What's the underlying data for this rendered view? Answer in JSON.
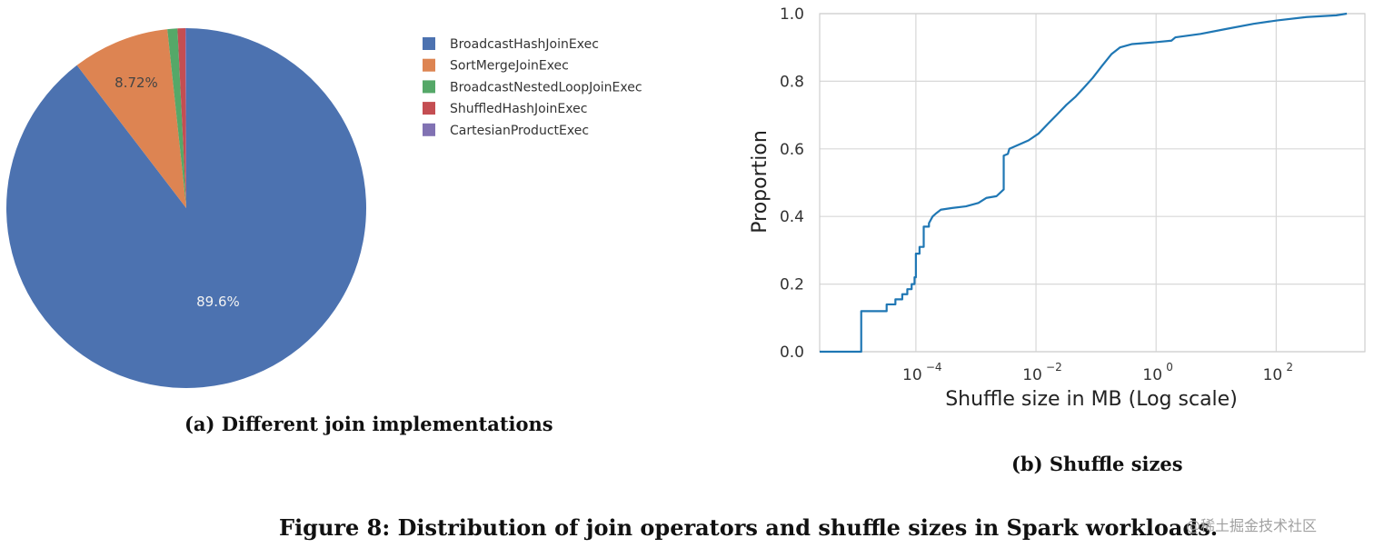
{
  "chart_data": [
    {
      "type": "pie",
      "caption": "(a) Different join implementations",
      "slices": [
        {
          "label": "BroadcastHashJoinExec",
          "value": 89.6,
          "color": "#4c72b0",
          "pct_label": "89.6%"
        },
        {
          "label": "SortMergeJoinExec",
          "value": 8.72,
          "color": "#dd8452",
          "pct_label": "8.72%"
        },
        {
          "label": "BroadcastNestedLoopJoinExec",
          "value": 0.9,
          "color": "#55a868",
          "pct_label": ""
        },
        {
          "label": "ShuffledHashJoinExec",
          "value": 0.7,
          "color": "#c44e52",
          "pct_label": ""
        },
        {
          "label": "CartesianProductExec",
          "value": 0.08,
          "color": "#8172b3",
          "pct_label": ""
        }
      ],
      "start_angle": "top, clockwise",
      "legend_position": "right"
    },
    {
      "type": "line",
      "caption": "(b) Shuffle sizes",
      "xlabel": "Shuffle size in MB (Log scale)",
      "ylabel": "Proportion",
      "xscale": "log",
      "xlim": [
        2.5e-06,
        3000
      ],
      "ylim": [
        0,
        1.0
      ],
      "xticks": [
        {
          "value": 0.0001,
          "base": "10",
          "exp": "−4"
        },
        {
          "value": 0.01,
          "base": "10",
          "exp": "−2"
        },
        {
          "value": 1,
          "base": "10",
          "exp": "0"
        },
        {
          "value": 100,
          "base": "10",
          "exp": "2"
        }
      ],
      "yticks": [
        "0.0",
        "0.2",
        "0.4",
        "0.6",
        "0.8",
        "1.0"
      ],
      "grid": true,
      "series": [
        {
          "color": "#1f77b4",
          "step": true,
          "points": [
            [
              2.5e-06,
              0.0
            ],
            [
              1.23e-05,
              0.0
            ],
            [
              1.23e-05,
              0.12
            ],
            [
              3.26e-05,
              0.12
            ],
            [
              3.26e-05,
              0.14
            ],
            [
              4.56e-05,
              0.14
            ],
            [
              4.56e-05,
              0.155
            ],
            [
              5.93e-05,
              0.155
            ],
            [
              5.93e-05,
              0.17
            ],
            [
              7.2e-05,
              0.17
            ],
            [
              7.2e-05,
              0.185
            ],
            [
              8.5e-05,
              0.185
            ],
            [
              8.5e-05,
              0.2
            ],
            [
              9.5e-05,
              0.2
            ],
            [
              9.5e-05,
              0.22
            ],
            [
              0.0001,
              0.22
            ],
            [
              0.0001,
              0.29
            ],
            [
              0.000115,
              0.29
            ],
            [
              0.000115,
              0.31
            ],
            [
              0.000135,
              0.31
            ],
            [
              0.000135,
              0.37
            ],
            [
              0.000165,
              0.37
            ],
            [
              0.000165,
              0.38
            ],
            [
              0.00019,
              0.4
            ],
            [
              0.00022,
              0.41
            ],
            [
              0.00026,
              0.42
            ],
            [
              0.0004,
              0.425
            ],
            [
              0.00068,
              0.43
            ],
            [
              0.0011,
              0.44
            ],
            [
              0.0015,
              0.455
            ],
            [
              0.0022,
              0.46
            ],
            [
              0.0029,
              0.48
            ],
            [
              0.0029,
              0.58
            ],
            [
              0.0034,
              0.585
            ],
            [
              0.0036,
              0.6
            ],
            [
              0.0048,
              0.61
            ],
            [
              0.0075,
              0.625
            ],
            [
              0.011,
              0.645
            ],
            [
              0.016,
              0.675
            ],
            [
              0.022,
              0.7
            ],
            [
              0.032,
              0.73
            ],
            [
              0.046,
              0.755
            ],
            [
              0.062,
              0.78
            ],
            [
              0.088,
              0.81
            ],
            [
              0.125,
              0.845
            ],
            [
              0.18,
              0.88
            ],
            [
              0.25,
              0.9
            ],
            [
              0.4,
              0.91
            ],
            [
              0.9,
              0.915
            ],
            [
              1.8,
              0.92
            ],
            [
              2.1,
              0.93
            ],
            [
              5.5,
              0.94
            ],
            [
              15,
              0.955
            ],
            [
              42,
              0.97
            ],
            [
              105,
              0.98
            ],
            [
              320,
              0.99
            ],
            [
              1000,
              0.995
            ],
            [
              1500,
              1.0
            ]
          ]
        }
      ]
    }
  ],
  "figure_caption": "Figure 8: Distribution of join operators and shuffle sizes in Spark workloads.",
  "watermark": "@稀土掘金技术社区"
}
